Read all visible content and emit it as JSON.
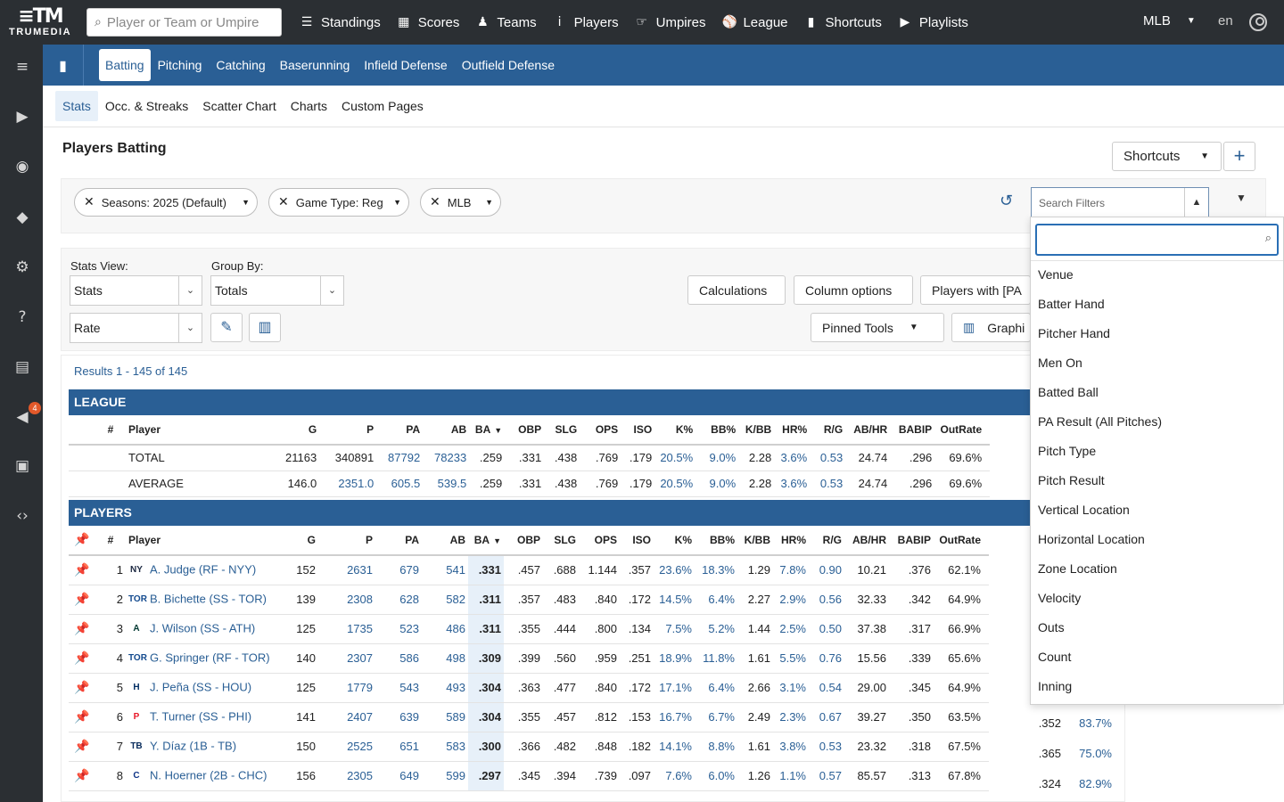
{
  "logo": {
    "word": "TRUMEDIA"
  },
  "search": {
    "placeholder": "Player or Team or Umpire"
  },
  "topnav": [
    {
      "label": "Standings",
      "icon": "list-icon"
    },
    {
      "label": "Scores",
      "icon": "grid-icon"
    },
    {
      "label": "Teams",
      "icon": "team-icon"
    },
    {
      "label": "Players",
      "icon": "player-icon"
    },
    {
      "label": "Umpires",
      "icon": "umpire-icon"
    },
    {
      "label": "League",
      "icon": "league-icon"
    },
    {
      "label": "Shortcuts",
      "icon": "bookmark-icon"
    },
    {
      "label": "Playlists",
      "icon": "playlist-icon"
    }
  ],
  "league_select": "MLB",
  "language": "en",
  "sidebar": {
    "badge_count": "4"
  },
  "categories": [
    "Batting",
    "Pitching",
    "Catching",
    "Baserunning",
    "Infield Defense",
    "Outfield Defense"
  ],
  "subtabs": [
    "Stats",
    "Occ. & Streaks",
    "Scatter Chart",
    "Charts",
    "Custom Pages"
  ],
  "page_title": "Players Batting",
  "shortcuts_button": "Shortcuts",
  "plus_button": "+",
  "filters": {
    "chips": [
      "Seasons: 2025 (Default)",
      "Game Type: Reg",
      "MLB"
    ],
    "search_placeholder": "Search Filters"
  },
  "controls": {
    "stats_view_label": "Stats View:",
    "stats_view_value": "Stats",
    "group_by_label": "Group By:",
    "group_by_value": "Totals",
    "rate_value": "Rate",
    "calculations": "Calculations",
    "column_options": "Column options",
    "players_with": "Players with [PA",
    "pinned_tools": "Pinned Tools",
    "graphics": "Graphi"
  },
  "results_count": "Results 1 - 145 of 145",
  "league_section": {
    "title": "LEAGUE",
    "columns": [
      "#",
      "Player",
      "G",
      "P",
      "PA",
      "AB",
      "BA",
      "OBP",
      "SLG",
      "OPS",
      "ISO",
      "K%",
      "BB%",
      "K/BB",
      "HR%",
      "R/G",
      "AB/HR",
      "BABIP",
      "OutRate"
    ],
    "rows": [
      {
        "label": "TOTAL",
        "values": [
          "21163",
          "340891",
          "87792",
          "78233",
          ".259",
          ".331",
          ".438",
          ".769",
          ".179",
          "20.5%",
          "9.0%",
          "2.28",
          "3.6%",
          "0.53",
          "24.74",
          ".296",
          "69.6%"
        ]
      },
      {
        "label": "AVERAGE",
        "values": [
          "146.0",
          "2351.0",
          "605.5",
          "539.5",
          ".259",
          ".331",
          ".438",
          ".769",
          ".179",
          "20.5%",
          "9.0%",
          "2.28",
          "3.6%",
          "0.53",
          "24.74",
          ".296",
          "69.6%"
        ]
      }
    ]
  },
  "players_section": {
    "title": "PLAYERS",
    "columns": [
      "#",
      "Player",
      "G",
      "P",
      "PA",
      "AB",
      "BA",
      "OBP",
      "SLG",
      "OPS",
      "ISO",
      "K%",
      "BB%",
      "K/BB",
      "HR%",
      "R/G",
      "AB/HR",
      "BABIP",
      "OutRate"
    ],
    "rows": [
      {
        "rank": "1",
        "name": "A. Judge (RF - NYY)",
        "logo": "NY",
        "logo_color": "#1c2841",
        "values": [
          "152",
          "2631",
          "679",
          "541",
          ".331",
          ".457",
          ".688",
          "1.144",
          ".357",
          "23.6%",
          "18.3%",
          "1.29",
          "7.8%",
          "0.90",
          "10.21",
          ".376",
          "62.1%"
        ]
      },
      {
        "rank": "2",
        "name": "B. Bichette (SS - TOR)",
        "logo": "TOR",
        "logo_color": "#134a8e",
        "values": [
          "139",
          "2308",
          "628",
          "582",
          ".311",
          ".357",
          ".483",
          ".840",
          ".172",
          "14.5%",
          "6.4%",
          "2.27",
          "2.9%",
          "0.56",
          "32.33",
          ".342",
          "64.9%"
        ]
      },
      {
        "rank": "3",
        "name": "J. Wilson (SS - ATH)",
        "logo": "A",
        "logo_color": "#003831",
        "values": [
          "125",
          "1735",
          "523",
          "486",
          ".311",
          ".355",
          ".444",
          ".800",
          ".134",
          "7.5%",
          "5.2%",
          "1.44",
          "2.5%",
          "0.50",
          "37.38",
          ".317",
          "66.9%"
        ]
      },
      {
        "rank": "4",
        "name": "G. Springer (RF - TOR)",
        "logo": "TOR",
        "logo_color": "#134a8e",
        "values": [
          "140",
          "2307",
          "586",
          "498",
          ".309",
          ".399",
          ".560",
          ".959",
          ".251",
          "18.9%",
          "11.8%",
          "1.61",
          "5.5%",
          "0.76",
          "15.56",
          ".339",
          "65.6%"
        ]
      },
      {
        "rank": "5",
        "name": "J. Peña (SS - HOU)",
        "logo": "H",
        "logo_color": "#002d62",
        "values": [
          "125",
          "1779",
          "543",
          "493",
          ".304",
          ".363",
          ".477",
          ".840",
          ".172",
          "17.1%",
          "6.4%",
          "2.66",
          "3.1%",
          "0.54",
          "29.00",
          ".345",
          "64.9%"
        ]
      },
      {
        "rank": "6",
        "name": "T. Turner (SS - PHI)",
        "logo": "P",
        "logo_color": "#e81828",
        "values": [
          "141",
          "2407",
          "639",
          "589",
          ".304",
          ".355",
          ".457",
          ".812",
          ".153",
          "16.7%",
          "6.7%",
          "2.49",
          "2.3%",
          "0.67",
          "39.27",
          ".350",
          "63.5%"
        ],
        "extra": [
          ".352",
          "83.7%"
        ]
      },
      {
        "rank": "7",
        "name": "Y. Díaz (1B - TB)",
        "logo": "TB",
        "logo_color": "#092c5c",
        "values": [
          "150",
          "2525",
          "651",
          "583",
          ".300",
          ".366",
          ".482",
          ".848",
          ".182",
          "14.1%",
          "8.8%",
          "1.61",
          "3.8%",
          "0.53",
          "23.32",
          ".318",
          "67.5%"
        ],
        "extra": [
          ".365",
          "75.0%"
        ]
      },
      {
        "rank": "8",
        "name": "N. Hoerner (2B - CHC)",
        "logo": "C",
        "logo_color": "#0e3386",
        "values": [
          "156",
          "2305",
          "649",
          "599",
          ".297",
          ".345",
          ".394",
          ".739",
          ".097",
          "7.6%",
          "6.0%",
          "1.26",
          "1.1%",
          "0.57",
          "85.57",
          ".313",
          "67.8%"
        ],
        "extra": [
          ".324",
          "82.9%"
        ]
      }
    ]
  },
  "dropdown": {
    "items": [
      "Venue",
      "Batter Hand",
      "Pitcher Hand",
      "Men On",
      "Batted Ball",
      "PA Result (All Pitches)",
      "Pitch Type",
      "Pitch Result",
      "Vertical Location",
      "Horizontal Location",
      "Zone Location",
      "Velocity",
      "Outs",
      "Count",
      "Inning"
    ]
  },
  "colors": {
    "topbar": "#2b2f33",
    "accent": "#2a5f95",
    "link": "#2a5f95",
    "highlight": "#e7f0f9"
  }
}
